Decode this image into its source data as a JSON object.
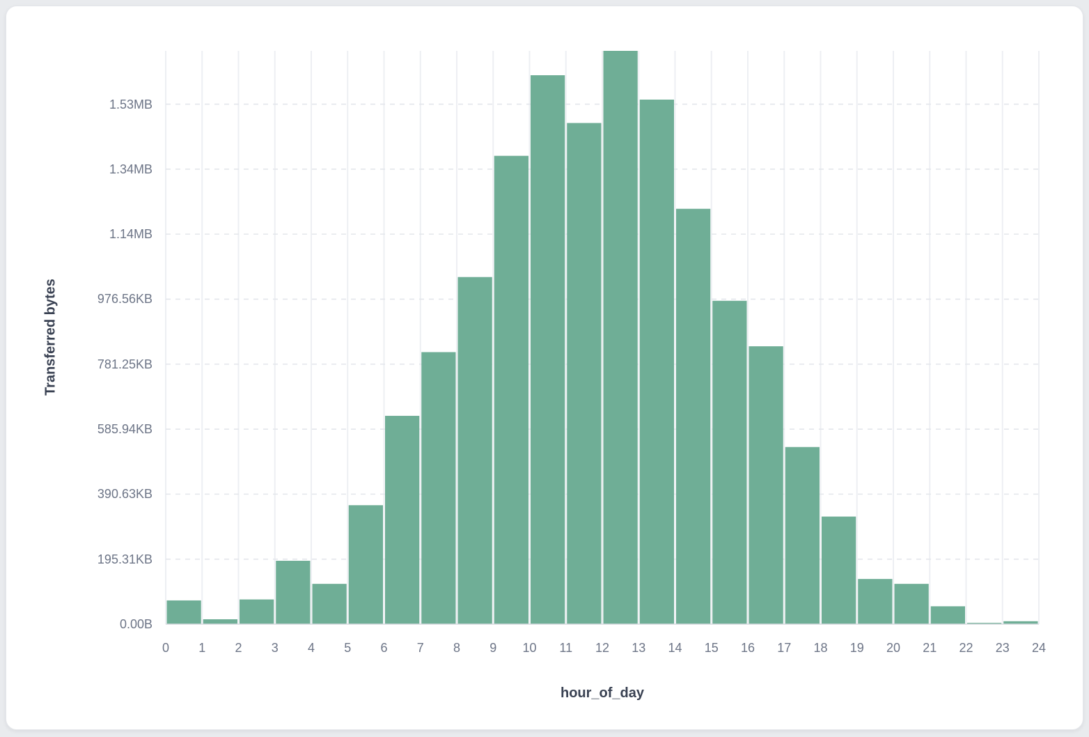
{
  "card": {
    "background": "#ffffff",
    "page_background": "#e9ebee"
  },
  "chart_data": {
    "type": "bar",
    "title": "",
    "xlabel": "hour_of_day",
    "ylabel": "Transferred bytes",
    "bar_color": "#6fae96",
    "bar_gap_color": "#ffffff",
    "grid": true,
    "legend": "none",
    "x_ticks": [
      "0",
      "1",
      "2",
      "3",
      "4",
      "5",
      "6",
      "7",
      "8",
      "9",
      "10",
      "11",
      "12",
      "13",
      "14",
      "15",
      "16",
      "17",
      "18",
      "19",
      "20",
      "21",
      "22",
      "23",
      "24"
    ],
    "y_ticks": [
      {
        "label": "0.00B",
        "value": 0
      },
      {
        "label": "195.31KB",
        "value": 200000
      },
      {
        "label": "390.63KB",
        "value": 400000
      },
      {
        "label": "585.94KB",
        "value": 600000
      },
      {
        "label": "781.25KB",
        "value": 800000
      },
      {
        "label": "976.56KB",
        "value": 1000000
      },
      {
        "label": "1.14MB",
        "value": 1200000
      },
      {
        "label": "1.34MB",
        "value": 1400000
      },
      {
        "label": "1.53MB",
        "value": 1600000
      }
    ],
    "categories": [
      0,
      1,
      2,
      3,
      4,
      5,
      6,
      7,
      8,
      9,
      10,
      11,
      12,
      13,
      14,
      15,
      16,
      17,
      18,
      19,
      20,
      21,
      22,
      23
    ],
    "values_bytes": [
      73000,
      15000,
      76000,
      195000,
      124000,
      366000,
      641000,
      837000,
      1068000,
      1441000,
      1689000,
      1542000,
      1764000,
      1614000,
      1278000,
      995000,
      855000,
      545000,
      331000,
      139000,
      124000,
      55000,
      4000,
      9000
    ],
    "ylim": [
      0,
      1764000
    ],
    "xlim": [
      0,
      24
    ]
  }
}
